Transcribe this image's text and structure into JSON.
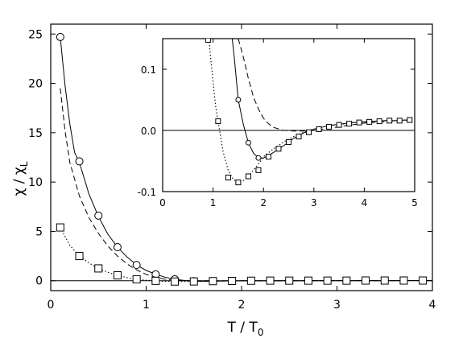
{
  "chart_data": [
    {
      "type": "line",
      "role": "main",
      "xlabel": "T / T",
      "xlabel_sub": "0",
      "ylabel": "χ / χ",
      "ylabel_sub": "L",
      "xlim": [
        0,
        4
      ],
      "ylim": [
        -1,
        26
      ],
      "xticks": [
        0,
        1,
        2,
        3,
        4
      ],
      "yticks": [
        0,
        5,
        10,
        15,
        20,
        25
      ],
      "grid": false,
      "reference_line_y": 0,
      "series": [
        {
          "style": "solid-circles",
          "x": [
            0.1,
            0.15,
            0.2,
            0.25,
            0.3,
            0.4,
            0.5,
            0.6,
            0.7,
            0.8,
            0.9,
            1.0,
            1.1,
            1.2,
            1.3,
            1.4,
            1.5,
            1.6,
            1.8,
            2.0,
            2.5,
            3.0,
            3.5,
            4.0
          ],
          "y": [
            24.7,
            19.8,
            15.9,
            13.0,
            12.0,
            8.8,
            6.5,
            4.7,
            3.4,
            2.4,
            1.6,
            1.05,
            0.65,
            0.35,
            0.15,
            0.03,
            -0.04,
            -0.05,
            -0.03,
            -0.01,
            0.0,
            0.01,
            0.01,
            0.02
          ],
          "markers": {
            "x": [
              0.1,
              0.3,
              0.5,
              0.7,
              0.9,
              1.1,
              1.3,
              1.5
            ],
            "y": [
              24.7,
              12.1,
              6.6,
              3.4,
              1.6,
              0.65,
              0.15,
              -0.04
            ]
          }
        },
        {
          "style": "dashed",
          "x": [
            0.1,
            0.15,
            0.2,
            0.3,
            0.4,
            0.5,
            0.6,
            0.7,
            0.8,
            0.9,
            1.0,
            1.1,
            1.2,
            1.3,
            1.4,
            1.5,
            1.7,
            2.0,
            2.5,
            3.0,
            3.5,
            4.0
          ],
          "y": [
            19.5,
            15.2,
            12.0,
            8.6,
            6.4,
            4.8,
            3.5,
            2.5,
            1.7,
            1.1,
            0.65,
            0.35,
            0.15,
            0.05,
            0.01,
            0.0,
            0.0,
            0.0,
            0.0,
            0.01,
            0.01,
            0.02
          ]
        },
        {
          "style": "dotted-squares",
          "x": [
            0.1,
            0.2,
            0.3,
            0.4,
            0.5,
            0.6,
            0.7,
            0.8,
            0.9,
            1.0,
            1.1,
            1.2,
            1.3,
            1.5,
            1.7,
            2.0,
            2.5,
            3.0,
            3.5,
            4.0
          ],
          "y": [
            5.4,
            3.6,
            2.5,
            1.8,
            1.25,
            0.85,
            0.55,
            0.32,
            0.15,
            0.05,
            -0.01,
            -0.06,
            -0.08,
            -0.07,
            -0.04,
            0.0,
            0.01,
            0.01,
            0.02,
            0.02
          ],
          "markers": {
            "x": [
              0.1,
              0.3,
              0.5,
              0.7,
              0.9,
              1.1,
              1.3,
              1.5,
              1.7,
              1.9,
              2.1,
              2.3,
              2.5,
              2.7,
              2.9,
              3.1,
              3.3,
              3.5,
              3.7,
              3.9
            ],
            "y": [
              5.4,
              2.5,
              1.25,
              0.55,
              0.15,
              -0.01,
              -0.08,
              -0.07,
              -0.04,
              -0.02,
              0.0,
              0.01,
              0.01,
              0.01,
              0.01,
              0.01,
              0.02,
              0.02,
              0.02,
              0.02
            ]
          }
        }
      ]
    },
    {
      "type": "line",
      "role": "inset",
      "xlim": [
        0,
        5
      ],
      "ylim": [
        -0.1,
        0.15
      ],
      "xticks": [
        0,
        1,
        2,
        3,
        4,
        5
      ],
      "yticks": [
        -0.1,
        0.0,
        0.1
      ],
      "ytick_labels": [
        "-0.1",
        "0.0",
        "0.1"
      ],
      "grid": false,
      "reference_line_y": 0,
      "series": [
        {
          "style": "solid-circles",
          "x": [
            1.38,
            1.42,
            1.5,
            1.6,
            1.7,
            1.8,
            1.9,
            2.0,
            2.1,
            2.2,
            2.4,
            2.6,
            2.8,
            3.0,
            3.2,
            3.4,
            3.6,
            3.8,
            4.0,
            4.2,
            4.4,
            4.6,
            4.8,
            4.9
          ],
          "y": [
            0.15,
            0.12,
            0.05,
            0.01,
            -0.02,
            -0.037,
            -0.045,
            -0.045,
            -0.041,
            -0.036,
            -0.025,
            -0.013,
            -0.004,
            0.002,
            0.006,
            0.009,
            0.011,
            0.013,
            0.014,
            0.015,
            0.016,
            0.016,
            0.017,
            0.017
          ],
          "markers": {
            "x": [
              1.5,
              1.7,
              1.9
            ],
            "y": [
              0.05,
              -0.02,
              -0.045
            ]
          }
        },
        {
          "style": "dashed",
          "x": [
            1.5,
            1.6,
            1.7,
            1.8,
            1.9,
            2.0,
            2.1,
            2.2,
            2.4,
            2.6,
            2.8,
            3.0,
            3.5,
            4.0,
            4.5,
            4.9
          ],
          "y": [
            0.15,
            0.12,
            0.085,
            0.055,
            0.035,
            0.02,
            0.011,
            0.005,
            0.0,
            -0.001,
            -0.001,
            0.0,
            0.006,
            0.012,
            0.015,
            0.017
          ]
        },
        {
          "style": "dotted-squares",
          "x": [
            0.92,
            0.95,
            1.0,
            1.05,
            1.1,
            1.2,
            1.3,
            1.4,
            1.5,
            1.6,
            1.7,
            1.8,
            1.9,
            2.0,
            2.2,
            2.4,
            2.6,
            2.8,
            3.0,
            3.2,
            3.4,
            3.6,
            3.8,
            4.0,
            4.2,
            4.4,
            4.6,
            4.8,
            4.9
          ],
          "y": [
            0.15,
            0.12,
            0.08,
            0.04,
            0.015,
            -0.035,
            -0.065,
            -0.08,
            -0.085,
            -0.082,
            -0.075,
            -0.065,
            -0.055,
            -0.043,
            -0.03,
            -0.019,
            -0.01,
            -0.003,
            0.002,
            0.006,
            0.009,
            0.011,
            0.013,
            0.014,
            0.015,
            0.016,
            0.016,
            0.017,
            0.017
          ],
          "markers": {
            "x": [
              0.9,
              1.1,
              1.3,
              1.5,
              1.7,
              1.9,
              2.1,
              2.3,
              2.5,
              2.7,
              2.9,
              3.1,
              3.3,
              3.5,
              3.7,
              3.9,
              4.1,
              4.3,
              4.5,
              4.7,
              4.9
            ],
            "y": [
              0.148,
              0.015,
              -0.077,
              -0.085,
              -0.075,
              -0.065,
              -0.043,
              -0.03,
              -0.019,
              -0.01,
              -0.003,
              0.002,
              0.006,
              0.009,
              0.011,
              0.013,
              0.014,
              0.015,
              0.016,
              0.016,
              0.017
            ]
          }
        }
      ]
    }
  ]
}
